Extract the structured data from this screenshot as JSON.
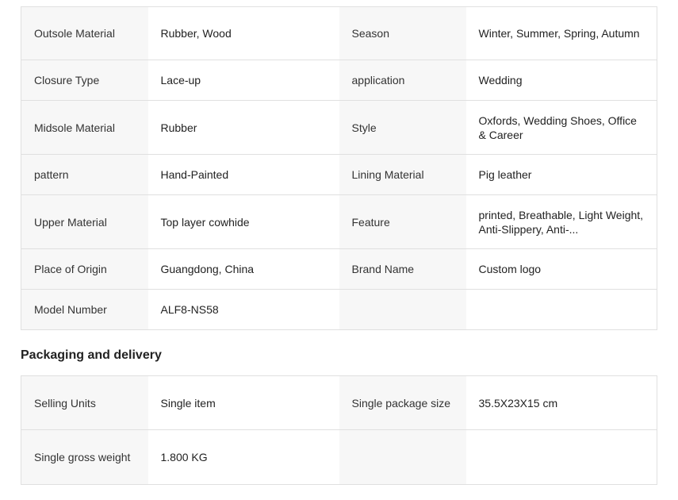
{
  "attributes": [
    [
      "Outsole Material",
      "Rubber, Wood",
      "Season",
      "Winter, Summer, Spring, Autumn"
    ],
    [
      "Closure Type",
      "Lace-up",
      "application",
      "Wedding"
    ],
    [
      "Midsole Material",
      "Rubber",
      "Style",
      "Oxfords, Wedding Shoes, Office & Career"
    ],
    [
      "pattern",
      "Hand-Painted",
      "Lining Material",
      "Pig leather"
    ],
    [
      "Upper Material",
      "Top layer cowhide",
      "Feature",
      "printed, Breathable, Light Weight, Anti-Slippery, Anti-..."
    ],
    [
      "Place of Origin",
      "Guangdong, China",
      "Brand Name",
      "Custom logo"
    ],
    [
      "Model Number",
      "ALF8-NS58",
      "",
      ""
    ]
  ],
  "packaging": {
    "title": "Packaging and delivery",
    "rows": [
      [
        "Selling Units",
        "Single item",
        "Single package size",
        "35.5X23X15 cm"
      ],
      [
        "Single gross weight",
        "1.800 KG",
        "",
        ""
      ]
    ]
  }
}
